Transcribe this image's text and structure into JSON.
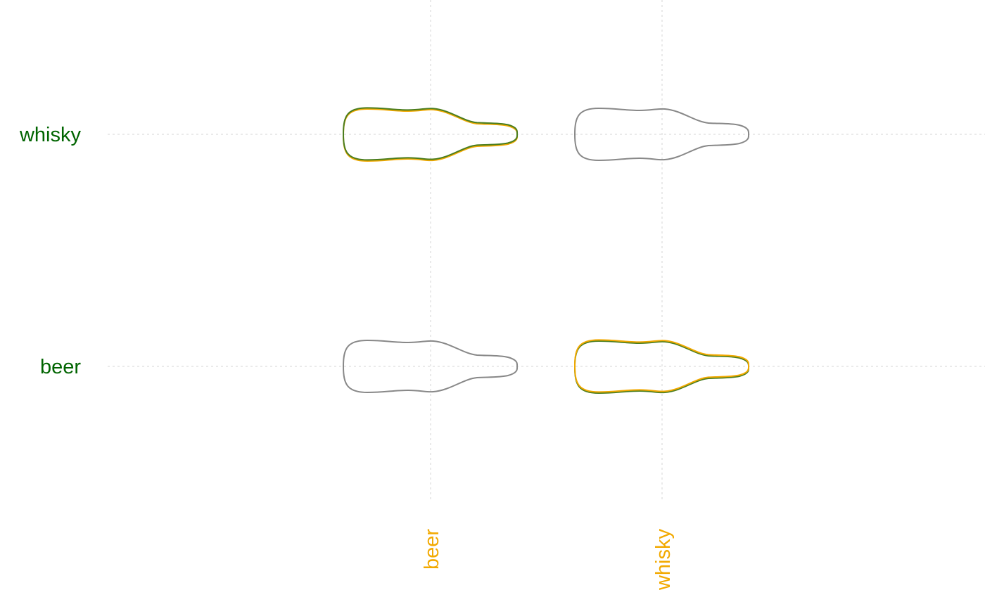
{
  "chart_data": {
    "type": "violin-matrix",
    "x_categories": [
      "beer",
      "whisky"
    ],
    "y_categories": [
      "beer",
      "whisky"
    ],
    "grid": true,
    "colors": {
      "x_labels": "#f2a900",
      "y_labels": "#006400",
      "neutral": "#888888",
      "gold": "#f2a900",
      "green": "#4a7d1e",
      "grid": "#dddddd"
    },
    "cells": [
      {
        "x": "beer",
        "y": "whisky",
        "highlighted": true,
        "outlines": [
          "gold",
          "green"
        ]
      },
      {
        "x": "whisky",
        "y": "whisky",
        "highlighted": false,
        "outlines": [
          "neutral"
        ]
      },
      {
        "x": "beer",
        "y": "beer",
        "highlighted": false,
        "outlines": [
          "neutral"
        ]
      },
      {
        "x": "whisky",
        "y": "beer",
        "highlighted": true,
        "outlines": [
          "green",
          "gold"
        ]
      }
    ]
  }
}
